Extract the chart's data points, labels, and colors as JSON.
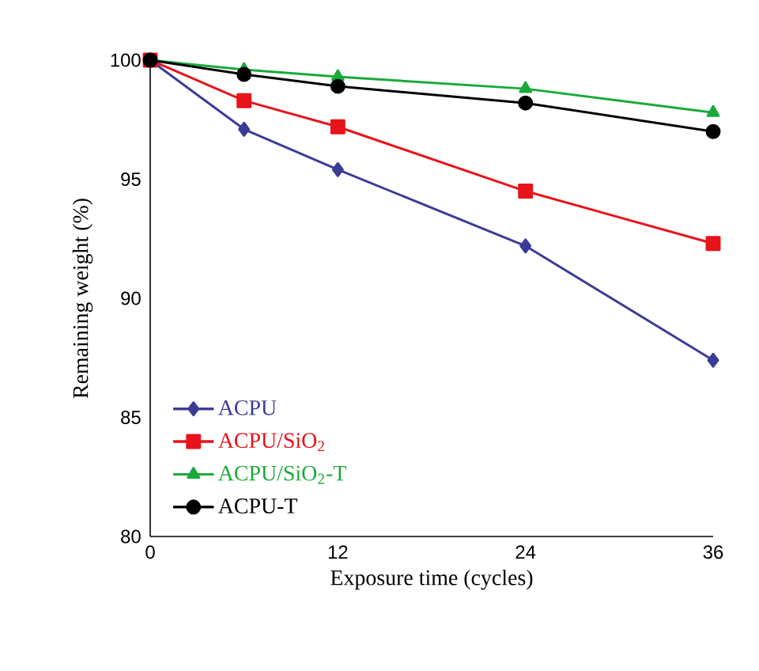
{
  "chart_data": {
    "type": "line",
    "xlabel": "Exposure time (cycles)",
    "ylabel": "Remaining weight (%)",
    "x": [
      0,
      6,
      12,
      24,
      36
    ],
    "xlim": [
      0,
      36
    ],
    "xticks": [
      0,
      12,
      24,
      36
    ],
    "ylim": [
      80,
      100
    ],
    "yticks": [
      80,
      85,
      90,
      95,
      100
    ],
    "grid": false,
    "legend": "bottom left",
    "line_style": "solid",
    "series": [
      {
        "name": "ACPU",
        "color": "#3b3b98",
        "marker": "diamond",
        "values": [
          100,
          97.1,
          95.4,
          92.2,
          87.4
        ]
      },
      {
        "name": "ACPU/SiO$_{2}$",
        "color": "#e8131b",
        "marker": "square",
        "values": [
          100,
          98.3,
          97.2,
          94.5,
          92.3
        ]
      },
      {
        "name": "ACPU/SiO$_{2}$-T",
        "color": "#1aaa3a",
        "marker": "triangle",
        "values": [
          100,
          99.6,
          99.3,
          98.8,
          97.8
        ]
      },
      {
        "name": "ACPU-T",
        "color": "#000000",
        "marker": "circle",
        "values": [
          100,
          99.4,
          98.9,
          98.2,
          97.0
        ]
      }
    ]
  }
}
